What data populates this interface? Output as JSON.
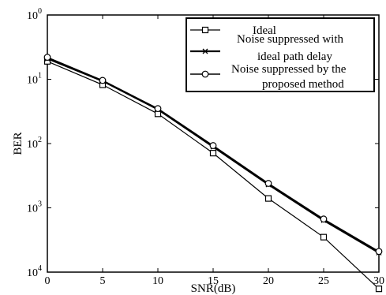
{
  "chart_data": {
    "type": "line",
    "xlabel": "SNR(dB)",
    "ylabel": "BER",
    "x": [
      0,
      5,
      10,
      15,
      20,
      25,
      30
    ],
    "xlim": [
      0,
      30
    ],
    "ylim": [
      0.0001,
      1
    ],
    "y_scale": "log",
    "x_ticks": [
      "0",
      "5",
      "10",
      "15",
      "20",
      "25",
      "30"
    ],
    "y_ticks": [
      {
        "base": "10",
        "exp": "0"
      },
      {
        "base": "10",
        "exp": "1"
      },
      {
        "base": "10",
        "exp": "2"
      },
      {
        "base": "10",
        "exp": "3"
      },
      {
        "base": "10",
        "exp": "4"
      }
    ],
    "grid": false,
    "legend_position": "top-right",
    "series": [
      {
        "name": "Ideal",
        "marker": "square",
        "values": [
          0.19,
          0.082,
          0.029,
          0.0071,
          0.0014,
          0.00035,
          5.5e-05
        ]
      },
      {
        "name": "Noise suppressed with ideal path delay",
        "marker": "x",
        "values": [
          0.21,
          0.094,
          0.034,
          0.0089,
          0.0023,
          0.00064,
          0.0002
        ]
      },
      {
        "name": "Noise suppressed by the proposed method",
        "marker": "circle",
        "values": [
          0.22,
          0.096,
          0.035,
          0.0093,
          0.0024,
          0.00067,
          0.00021
        ]
      }
    ]
  }
}
